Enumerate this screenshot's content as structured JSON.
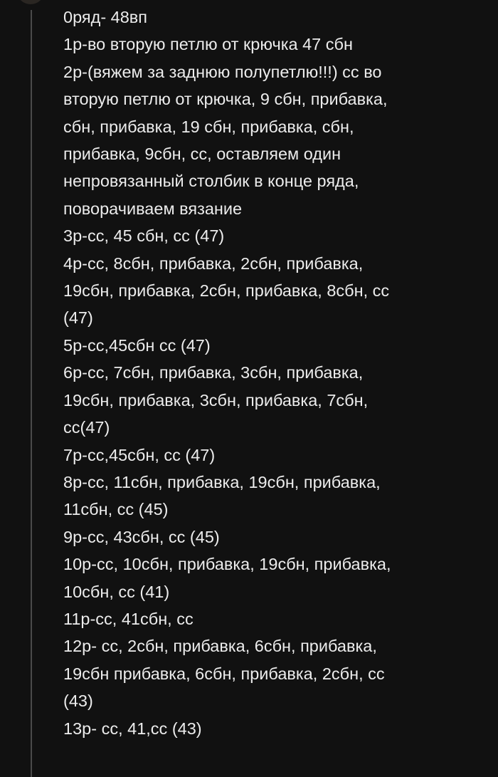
{
  "comment": {
    "lines": [
      "0ряд- 48вп",
      "1р-во вторую петлю от крючка 47 сбн",
      "2р-(вяжем за заднюю полупетлю!!!) сс во",
      "вторую петлю от крючка, 9 сбн, прибавка,",
      "сбн, прибавка, 19 сбн, прибавка, сбн,",
      "прибавка, 9сбн, сс, оставляем один",
      "непровязанный столбик в конце ряда,",
      "поворачиваем вязание",
      "3р-сс, 45 сбн, сс (47)",
      "4р-сс, 8сбн, прибавка, 2сбн, прибавка,",
      "19сбн, прибавка, 2сбн, прибавка, 8сбн, сс",
      "(47)",
      "5р-сс,45сбн сс (47)",
      "6р-сс, 7сбн, прибавка, 3сбн, прибавка,",
      "19сбн, прибавка, 3сбн, прибавка, 7сбн,",
      "сс(47)",
      "7р-сс,45сбн, сс (47)",
      "8р-сс, 11сбн, прибавка, 19сбн, прибавка,",
      "11сбн, сс (45)",
      "9р-сс, 43сбн, сс (45)",
      "10р-сс, 10сбн, прибавка, 19сбн, прибавка,",
      "10сбн, сс (41)",
      "11р-сс, 41сбн, сс",
      "12р- сс, 2сбн, прибавка, 6сбн, прибавка,",
      "19сбн прибавка, 6сбн, прибавка, 2сбн, сс",
      "(43)",
      "13р- сс, 41,сс (43)"
    ]
  },
  "colors": {
    "background": "#111111",
    "text": "#ececec",
    "thread_line": "#4a4a4a"
  }
}
